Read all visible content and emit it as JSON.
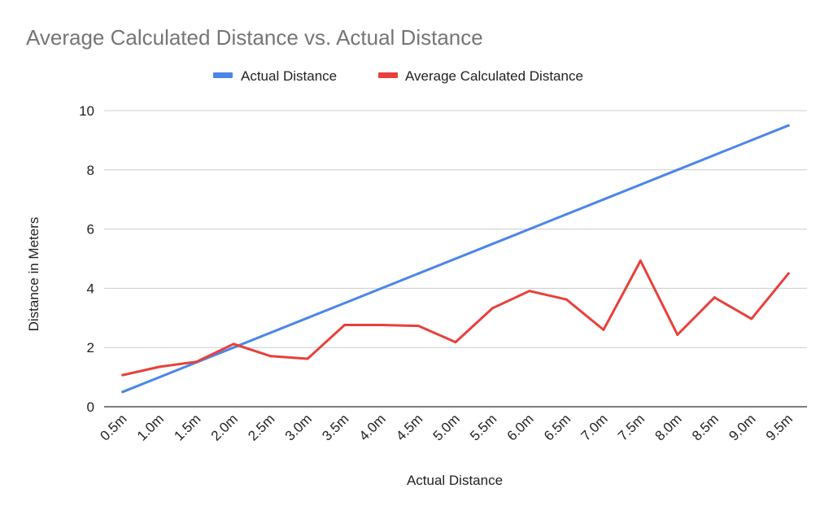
{
  "chart_data": {
    "type": "line",
    "title": "Average Calculated Distance vs. Actual Distance",
    "xlabel": "Actual Distance",
    "ylabel": "Distance in Meters",
    "categories": [
      "0.5m",
      "1.0m",
      "1.5m",
      "2.0m",
      "2.5m",
      "3.0m",
      "3.5m",
      "4.0m",
      "4.5m",
      "5.0m",
      "5.5m",
      "6.0m",
      "6.5m",
      "7.0m",
      "7.5m",
      "8.0m",
      "8.5m",
      "9.0m",
      "9.5m"
    ],
    "ylim": [
      0,
      10
    ],
    "yticks": [
      0,
      2,
      4,
      6,
      8,
      10
    ],
    "grid": true,
    "legend_position": "top",
    "series": [
      {
        "name": "Actual Distance",
        "color": "#4a86e8",
        "values": [
          0.5,
          1.0,
          1.5,
          2.0,
          2.5,
          3.0,
          3.5,
          4.0,
          4.5,
          5.0,
          5.5,
          6.0,
          6.5,
          7.0,
          7.5,
          8.0,
          8.5,
          9.0,
          9.5
        ]
      },
      {
        "name": "Average Calculated Distance",
        "color": "#e8403b",
        "values": [
          1.07,
          1.35,
          1.52,
          2.12,
          1.71,
          1.62,
          2.76,
          2.76,
          2.73,
          2.18,
          3.33,
          3.91,
          3.62,
          2.6,
          4.93,
          2.43,
          3.69,
          2.97,
          4.5
        ]
      }
    ]
  }
}
